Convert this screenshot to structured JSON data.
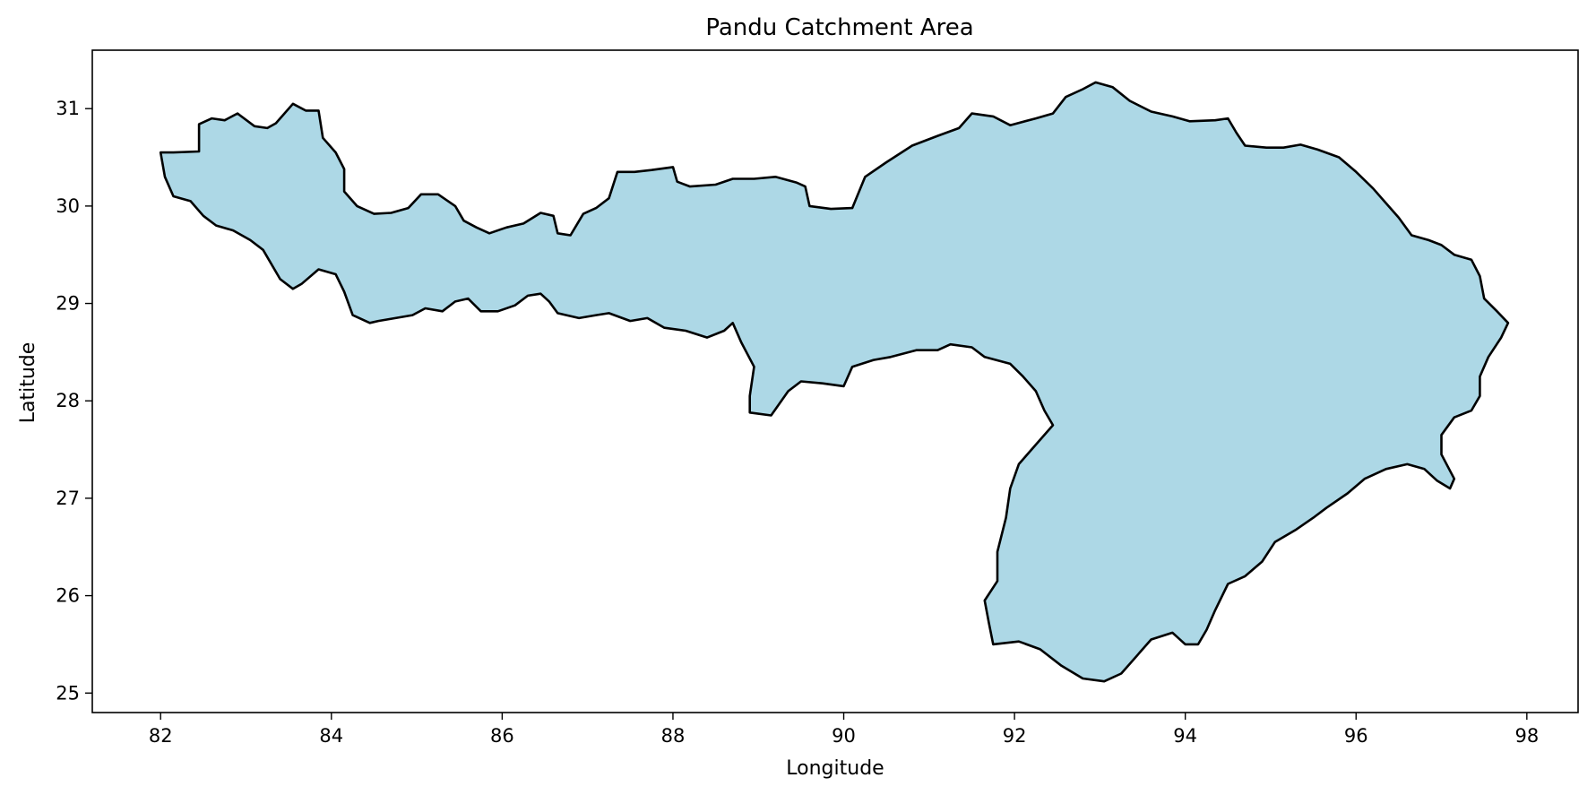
{
  "chart_data": {
    "type": "map",
    "title": "Pandu Catchment Area",
    "xlabel": "Longitude",
    "ylabel": "Latitude",
    "xlim": [
      81.2,
      98.6
    ],
    "ylim": [
      24.8,
      31.6
    ],
    "xticks": [
      82,
      84,
      86,
      88,
      90,
      92,
      94,
      96,
      98
    ],
    "yticks": [
      25,
      26,
      27,
      28,
      29,
      30,
      31
    ],
    "grid": false,
    "fill_color": "#add8e6",
    "edge_color": "#000000",
    "boundary": [
      [
        82.0,
        30.55
      ],
      [
        82.15,
        30.55
      ],
      [
        82.45,
        30.56
      ],
      [
        82.45,
        30.84
      ],
      [
        82.6,
        30.9
      ],
      [
        82.75,
        30.88
      ],
      [
        82.9,
        30.95
      ],
      [
        83.1,
        30.82
      ],
      [
        83.25,
        30.8
      ],
      [
        83.35,
        30.85
      ],
      [
        83.55,
        31.05
      ],
      [
        83.7,
        30.98
      ],
      [
        83.85,
        30.98
      ],
      [
        83.9,
        30.7
      ],
      [
        84.05,
        30.55
      ],
      [
        84.15,
        30.38
      ],
      [
        84.15,
        30.15
      ],
      [
        84.3,
        30.0
      ],
      [
        84.5,
        29.92
      ],
      [
        84.7,
        29.93
      ],
      [
        84.9,
        29.98
      ],
      [
        85.05,
        30.12
      ],
      [
        85.25,
        30.12
      ],
      [
        85.45,
        30.0
      ],
      [
        85.55,
        29.85
      ],
      [
        85.7,
        29.78
      ],
      [
        85.85,
        29.72
      ],
      [
        86.05,
        29.78
      ],
      [
        86.25,
        29.82
      ],
      [
        86.45,
        29.93
      ],
      [
        86.6,
        29.9
      ],
      [
        86.65,
        29.72
      ],
      [
        86.8,
        29.7
      ],
      [
        86.95,
        29.92
      ],
      [
        87.1,
        29.98
      ],
      [
        87.25,
        30.08
      ],
      [
        87.35,
        30.35
      ],
      [
        87.55,
        30.35
      ],
      [
        87.75,
        30.37
      ],
      [
        88.0,
        30.4
      ],
      [
        88.05,
        30.25
      ],
      [
        88.2,
        30.2
      ],
      [
        88.5,
        30.22
      ],
      [
        88.7,
        30.28
      ],
      [
        88.95,
        30.28
      ],
      [
        89.2,
        30.3
      ],
      [
        89.45,
        30.24
      ],
      [
        89.55,
        30.2
      ],
      [
        89.6,
        30.0
      ],
      [
        89.85,
        29.97
      ],
      [
        90.1,
        29.98
      ],
      [
        90.25,
        30.3
      ],
      [
        90.5,
        30.45
      ],
      [
        90.8,
        30.62
      ],
      [
        91.1,
        30.72
      ],
      [
        91.35,
        30.8
      ],
      [
        91.5,
        30.95
      ],
      [
        91.75,
        30.92
      ],
      [
        91.95,
        30.83
      ],
      [
        92.25,
        30.9
      ],
      [
        92.45,
        30.95
      ],
      [
        92.6,
        31.12
      ],
      [
        92.8,
        31.2
      ],
      [
        92.95,
        31.27
      ],
      [
        93.15,
        31.22
      ],
      [
        93.35,
        31.08
      ],
      [
        93.6,
        30.97
      ],
      [
        93.85,
        30.92
      ],
      [
        94.05,
        30.87
      ],
      [
        94.35,
        30.88
      ],
      [
        94.5,
        30.9
      ],
      [
        94.6,
        30.75
      ],
      [
        94.7,
        30.62
      ],
      [
        94.95,
        30.6
      ],
      [
        95.15,
        30.6
      ],
      [
        95.35,
        30.63
      ],
      [
        95.55,
        30.58
      ],
      [
        95.8,
        30.5
      ],
      [
        96.0,
        30.35
      ],
      [
        96.2,
        30.18
      ],
      [
        96.35,
        30.03
      ],
      [
        96.5,
        29.88
      ],
      [
        96.65,
        29.7
      ],
      [
        96.85,
        29.65
      ],
      [
        97.0,
        29.6
      ],
      [
        97.15,
        29.5
      ],
      [
        97.35,
        29.45
      ],
      [
        97.45,
        29.28
      ],
      [
        97.5,
        29.05
      ],
      [
        97.65,
        28.92
      ],
      [
        97.78,
        28.8
      ],
      [
        97.7,
        28.65
      ],
      [
        97.55,
        28.45
      ],
      [
        97.45,
        28.25
      ],
      [
        97.45,
        28.05
      ],
      [
        97.35,
        27.9
      ],
      [
        97.15,
        27.83
      ],
      [
        97.0,
        27.65
      ],
      [
        97.0,
        27.45
      ],
      [
        97.15,
        27.2
      ],
      [
        97.1,
        27.1
      ],
      [
        96.95,
        27.18
      ],
      [
        96.8,
        27.3
      ],
      [
        96.6,
        27.35
      ],
      [
        96.35,
        27.3
      ],
      [
        96.1,
        27.2
      ],
      [
        95.9,
        27.05
      ],
      [
        95.65,
        26.9
      ],
      [
        95.5,
        26.8
      ],
      [
        95.3,
        26.68
      ],
      [
        95.05,
        26.55
      ],
      [
        94.9,
        26.35
      ],
      [
        94.7,
        26.2
      ],
      [
        94.5,
        26.12
      ],
      [
        94.35,
        25.85
      ],
      [
        94.25,
        25.65
      ],
      [
        94.15,
        25.5
      ],
      [
        94.0,
        25.5
      ],
      [
        93.85,
        25.62
      ],
      [
        93.6,
        25.55
      ],
      [
        93.45,
        25.4
      ],
      [
        93.25,
        25.2
      ],
      [
        93.05,
        25.12
      ],
      [
        92.8,
        25.15
      ],
      [
        92.55,
        25.28
      ],
      [
        92.3,
        25.45
      ],
      [
        92.05,
        25.53
      ],
      [
        91.75,
        25.5
      ],
      [
        91.7,
        25.72
      ],
      [
        91.65,
        25.95
      ],
      [
        91.8,
        26.15
      ],
      [
        91.8,
        26.45
      ],
      [
        91.9,
        26.8
      ],
      [
        91.95,
        27.1
      ],
      [
        92.05,
        27.35
      ],
      [
        92.25,
        27.55
      ],
      [
        92.45,
        27.75
      ],
      [
        92.35,
        27.9
      ],
      [
        92.25,
        28.1
      ],
      [
        92.1,
        28.25
      ],
      [
        91.95,
        28.38
      ],
      [
        91.65,
        28.45
      ],
      [
        91.5,
        28.55
      ],
      [
        91.25,
        28.58
      ],
      [
        91.1,
        28.52
      ],
      [
        90.85,
        28.52
      ],
      [
        90.55,
        28.45
      ],
      [
        90.35,
        28.42
      ],
      [
        90.1,
        28.35
      ],
      [
        90.0,
        28.15
      ],
      [
        89.75,
        28.18
      ],
      [
        89.5,
        28.2
      ],
      [
        89.35,
        28.1
      ],
      [
        89.15,
        27.85
      ],
      [
        88.9,
        27.88
      ],
      [
        88.9,
        28.05
      ],
      [
        88.95,
        28.35
      ],
      [
        88.8,
        28.6
      ],
      [
        88.7,
        28.8
      ],
      [
        88.6,
        28.72
      ],
      [
        88.4,
        28.65
      ],
      [
        88.15,
        28.72
      ],
      [
        87.9,
        28.75
      ],
      [
        87.7,
        28.85
      ],
      [
        87.5,
        28.82
      ],
      [
        87.25,
        28.9
      ],
      [
        87.1,
        28.88
      ],
      [
        86.9,
        28.85
      ],
      [
        86.65,
        28.9
      ],
      [
        86.55,
        29.02
      ],
      [
        86.45,
        29.1
      ],
      [
        86.3,
        29.08
      ],
      [
        86.15,
        28.98
      ],
      [
        85.95,
        28.92
      ],
      [
        85.75,
        28.92
      ],
      [
        85.6,
        29.05
      ],
      [
        85.45,
        29.02
      ],
      [
        85.3,
        28.92
      ],
      [
        85.1,
        28.95
      ],
      [
        84.95,
        28.88
      ],
      [
        84.75,
        28.85
      ],
      [
        84.55,
        28.82
      ],
      [
        84.45,
        28.8
      ],
      [
        84.25,
        28.88
      ],
      [
        84.15,
        29.12
      ],
      [
        84.05,
        29.3
      ],
      [
        83.85,
        29.35
      ],
      [
        83.65,
        29.2
      ],
      [
        83.55,
        29.15
      ],
      [
        83.4,
        29.25
      ],
      [
        83.2,
        29.55
      ],
      [
        83.05,
        29.65
      ],
      [
        82.85,
        29.75
      ],
      [
        82.65,
        29.8
      ],
      [
        82.5,
        29.9
      ],
      [
        82.35,
        30.05
      ],
      [
        82.15,
        30.1
      ],
      [
        82.05,
        30.3
      ],
      [
        82.0,
        30.55
      ]
    ]
  }
}
